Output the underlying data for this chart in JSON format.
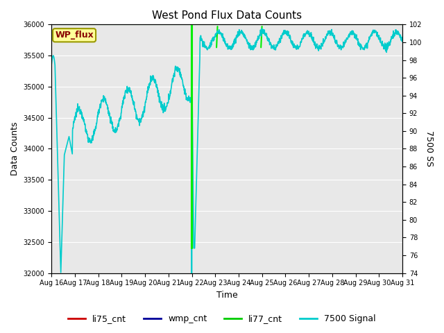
{
  "title": "West Pond Flux Data Counts",
  "xlabel": "Time",
  "ylabel_left": "Data Counts",
  "ylabel_right": "7500 SS",
  "wp_flux_label": "WP_flux",
  "ylim_left": [
    32000,
    36000
  ],
  "ylim_right": [
    74,
    102
  ],
  "background_color": "#e8e8e8",
  "legend_entries": [
    "li75_cnt",
    "wmp_cnt",
    "li77_cnt",
    "7500 Signal"
  ],
  "legend_colors": [
    "#cc0000",
    "#000099",
    "#00cc00",
    "#00cccc"
  ],
  "li77_color": "#00ee00",
  "signal_color": "#00cccc",
  "xtick_labels": [
    "Aug 16",
    "Aug 17",
    "Aug 18",
    "Aug 19",
    "Aug 20",
    "Aug 21",
    "Aug 22",
    "Aug 23",
    "Aug 24",
    "Aug 25",
    "Aug 26",
    "Aug 27",
    "Aug 28",
    "Aug 29",
    "Aug 30",
    "Aug 31"
  ],
  "figsize": [
    6.4,
    4.8
  ],
  "dpi": 100
}
